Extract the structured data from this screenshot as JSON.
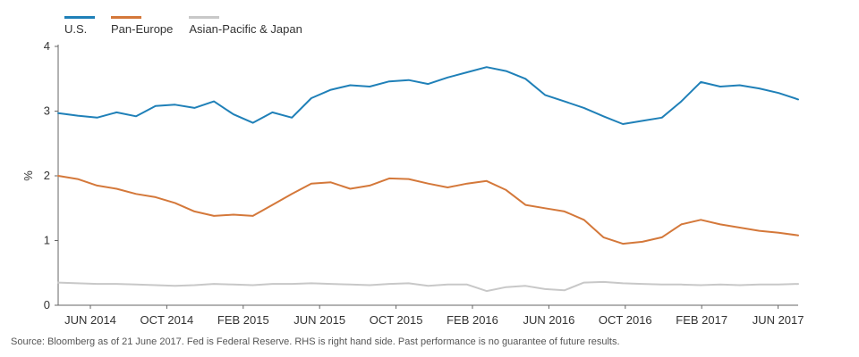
{
  "header": {
    "partial_title": "",
    "partial_note": ""
  },
  "chart_data": {
    "type": "line",
    "ylabel": "%",
    "xlabel": "",
    "ylim": [
      0,
      4
    ],
    "yticks": [
      "0",
      "1",
      "2",
      "3",
      "4"
    ],
    "grid": false,
    "legend_position": "top-left",
    "x_tick_labels": [
      "JUN 2014",
      "OCT 2014",
      "FEB 2015",
      "JUN 2015",
      "OCT 2015",
      "FEB 2016",
      "JUN 2016",
      "OCT 2016",
      "FEB 2017",
      "JUN 2017"
    ],
    "x": [
      "2014-04",
      "2014-05",
      "2014-06",
      "2014-07",
      "2014-08",
      "2014-09",
      "2014-10",
      "2014-11",
      "2014-12",
      "2015-01",
      "2015-02",
      "2015-03",
      "2015-04",
      "2015-05",
      "2015-06",
      "2015-07",
      "2015-08",
      "2015-09",
      "2015-10",
      "2015-11",
      "2015-12",
      "2016-01",
      "2016-02",
      "2016-03",
      "2016-04",
      "2016-05",
      "2016-06",
      "2016-07",
      "2016-08",
      "2016-09",
      "2016-10",
      "2016-11",
      "2016-12",
      "2017-01",
      "2017-02",
      "2017-03",
      "2017-04",
      "2017-05",
      "2017-06"
    ],
    "series": [
      {
        "name": "U.S.",
        "color": "#1f80b8",
        "values": [
          2.97,
          2.93,
          2.9,
          2.98,
          2.92,
          3.08,
          3.1,
          3.05,
          3.15,
          2.95,
          2.82,
          2.98,
          2.9,
          3.2,
          3.33,
          3.4,
          3.38,
          3.46,
          3.48,
          3.42,
          3.52,
          3.6,
          3.68,
          3.62,
          3.5,
          3.25,
          3.15,
          3.05,
          2.92,
          2.8,
          2.85,
          2.9,
          3.15,
          3.45,
          3.38,
          3.4,
          3.35,
          3.28,
          3.18
        ]
      },
      {
        "name": "Pan-Europe",
        "color": "#d4783a",
        "values": [
          2.0,
          1.95,
          1.85,
          1.8,
          1.72,
          1.67,
          1.58,
          1.45,
          1.38,
          1.4,
          1.38,
          1.55,
          1.72,
          1.88,
          1.9,
          1.8,
          1.85,
          1.96,
          1.95,
          1.88,
          1.82,
          1.88,
          1.92,
          1.78,
          1.55,
          1.5,
          1.45,
          1.32,
          1.05,
          0.95,
          0.98,
          1.05,
          1.25,
          1.32,
          1.25,
          1.2,
          1.15,
          1.12,
          1.08
        ]
      },
      {
        "name": "Asian-Pacific & Japan",
        "color": "#c8c8c8",
        "values": [
          0.35,
          0.34,
          0.33,
          0.33,
          0.32,
          0.31,
          0.3,
          0.31,
          0.33,
          0.32,
          0.31,
          0.33,
          0.33,
          0.34,
          0.33,
          0.32,
          0.31,
          0.33,
          0.34,
          0.3,
          0.32,
          0.32,
          0.22,
          0.28,
          0.3,
          0.25,
          0.23,
          0.35,
          0.36,
          0.34,
          0.33,
          0.32,
          0.32,
          0.31,
          0.32,
          0.31,
          0.32,
          0.32,
          0.33
        ]
      }
    ]
  },
  "footer": {
    "source": "Source: Bloomberg as of 21 June 2017. Fed is Federal Reserve. RHS is right hand side. Past performance is no guarantee of future results.",
    "partial_note": ""
  }
}
